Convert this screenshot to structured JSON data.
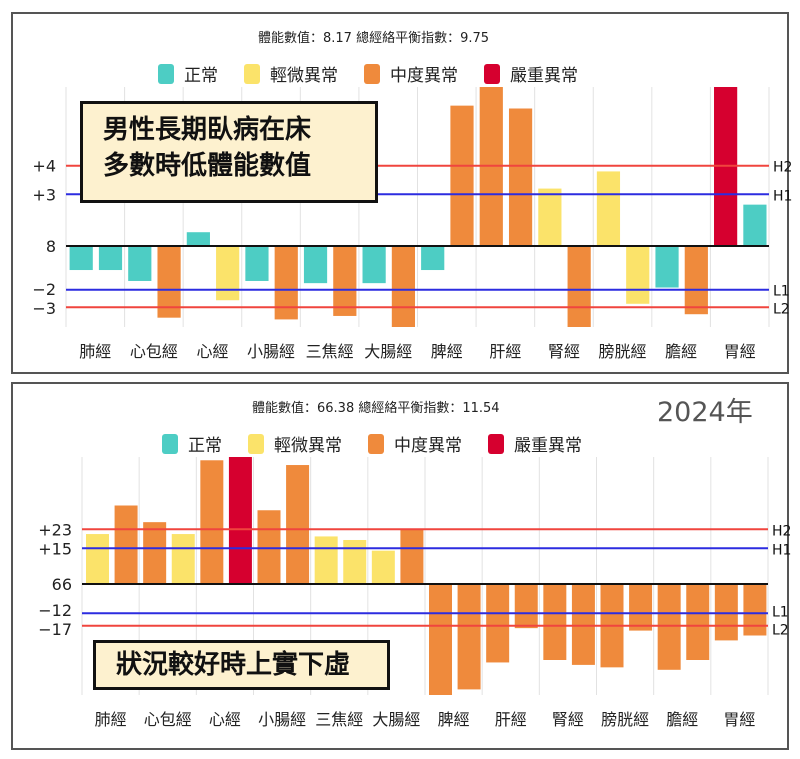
{
  "colors": {
    "正常": "#4dcdc4",
    "輕微異常": "#fbe36a",
    "中度異常": "#ef8a3c",
    "嚴重異常": "#d6002f",
    "h_line": "#f0453e",
    "l_line": "#2c2ce0"
  },
  "legend": [
    "正常",
    "輕微異常",
    "中度異常",
    "嚴重異常"
  ],
  "chart_data": [
    {
      "type": "bar",
      "title": "體能數值：8.17 總經絡平衡指數：9.75",
      "annotation": "男性長期臥病在床\n多數時低體能數值",
      "annotation_lines": [
        "男性長期臥病在床",
        "多數時低體能數值"
      ],
      "categories": [
        "肺經",
        "心包經",
        "心經",
        "小腸經",
        "三焦經",
        "大腸經",
        "脾經",
        "肝經",
        "腎經",
        "膀胱經",
        "膽經",
        "胃經"
      ],
      "baseline_label": "8",
      "ticks": [
        {
          "label": "+4",
          "value": 4,
          "line": "H2",
          "kind": "h"
        },
        {
          "label": "+3",
          "value": 3,
          "line": "H1",
          "kind": "l"
        },
        {
          "label": "8",
          "value": 0,
          "line": "",
          "kind": "base"
        },
        {
          "label": "−2",
          "value": -2,
          "line": "L1",
          "kind": "l"
        },
        {
          "label": "−3",
          "value": -3,
          "line": "L2",
          "kind": "h"
        }
      ],
      "bars": [
        [
          {
            "value": -1.1,
            "status": "正常"
          },
          {
            "value": -1.1,
            "status": "正常"
          }
        ],
        [
          {
            "value": -1.6,
            "status": "正常"
          },
          {
            "value": -3.6,
            "status": "中度異常"
          }
        ],
        [
          {
            "value": 0.8,
            "status": "正常"
          },
          {
            "value": -2.6,
            "status": "輕微異常"
          }
        ],
        [
          {
            "value": -1.6,
            "status": "正常"
          },
          {
            "value": -3.7,
            "status": "中度異常"
          }
        ],
        [
          {
            "value": -1.7,
            "status": "正常"
          },
          {
            "value": -3.5,
            "status": "中度異常"
          }
        ],
        [
          {
            "value": -1.7,
            "status": "正常"
          },
          {
            "value": -4.2,
            "status": "中度異常"
          }
        ],
        [
          {
            "value": -1.1,
            "status": "正常"
          },
          {
            "value": 6.1,
            "status": "中度異常"
          }
        ],
        [
          {
            "value": 6.8,
            "status": "中度異常"
          },
          {
            "value": 6.0,
            "status": "中度異常"
          }
        ],
        [
          {
            "value": 3.2,
            "status": "輕微異常"
          },
          {
            "value": -4.2,
            "status": "中度異常"
          }
        ],
        [
          {
            "value": 3.8,
            "status": "輕微異常"
          },
          {
            "value": -2.8,
            "status": "輕微異常"
          }
        ],
        [
          {
            "value": -1.9,
            "status": "正常"
          },
          {
            "value": -3.4,
            "status": "中度異常"
          }
        ],
        [
          {
            "value": 6.8,
            "status": "嚴重異常"
          },
          {
            "value": 2.4,
            "status": "正常"
          }
        ]
      ]
    },
    {
      "type": "bar",
      "title": "體能數值：66.38 總經絡平衡指數：11.54",
      "year": "2024年",
      "annotation": "狀況較好時上實下虛",
      "categories": [
        "肺經",
        "心包經",
        "心經",
        "小腸經",
        "三焦經",
        "大腸經",
        "脾經",
        "肝經",
        "腎經",
        "膀胱經",
        "膽經",
        "胃經"
      ],
      "ticks": [
        {
          "label": "+23",
          "value": 23,
          "line": "H2",
          "kind": "h"
        },
        {
          "label": "+15",
          "value": 15,
          "line": "H1",
          "kind": "l"
        },
        {
          "label": "66",
          "value": 0,
          "line": "",
          "kind": "base"
        },
        {
          "label": "−12",
          "value": -12,
          "line": "L1",
          "kind": "l"
        },
        {
          "label": "−17",
          "value": -17,
          "line": "L2",
          "kind": "h"
        }
      ],
      "bars": [
        [
          {
            "value": 21,
            "status": "輕微異常"
          },
          {
            "value": 33,
            "status": "中度異常"
          }
        ],
        [
          {
            "value": 26,
            "status": "中度異常"
          },
          {
            "value": 21,
            "status": "輕微異常"
          }
        ],
        [
          {
            "value": 52,
            "status": "中度異常"
          },
          {
            "value": 54,
            "status": "嚴重異常"
          }
        ],
        [
          {
            "value": 31,
            "status": "中度異常"
          },
          {
            "value": 50,
            "status": "中度異常"
          }
        ],
        [
          {
            "value": 20,
            "status": "輕微異常"
          },
          {
            "value": 18.5,
            "status": "輕微異常"
          }
        ],
        [
          {
            "value": 14,
            "status": "輕微異常"
          },
          {
            "value": 23,
            "status": "中度異常"
          }
        ],
        [
          {
            "value": -46,
            "status": "中度異常"
          },
          {
            "value": -43,
            "status": "中度異常"
          }
        ],
        [
          {
            "value": -32,
            "status": "中度異常"
          },
          {
            "value": -18,
            "status": "中度異常"
          }
        ],
        [
          {
            "value": -31,
            "status": "中度異常"
          },
          {
            "value": -33,
            "status": "中度異常"
          }
        ],
        [
          {
            "value": -34,
            "status": "中度異常"
          },
          {
            "value": -19,
            "status": "中度異常"
          }
        ],
        [
          {
            "value": -35,
            "status": "中度異常"
          },
          {
            "value": -31,
            "status": "中度異常"
          }
        ],
        [
          {
            "value": -23,
            "status": "中度異常"
          },
          {
            "value": -21,
            "status": "中度異常"
          }
        ]
      ]
    }
  ]
}
